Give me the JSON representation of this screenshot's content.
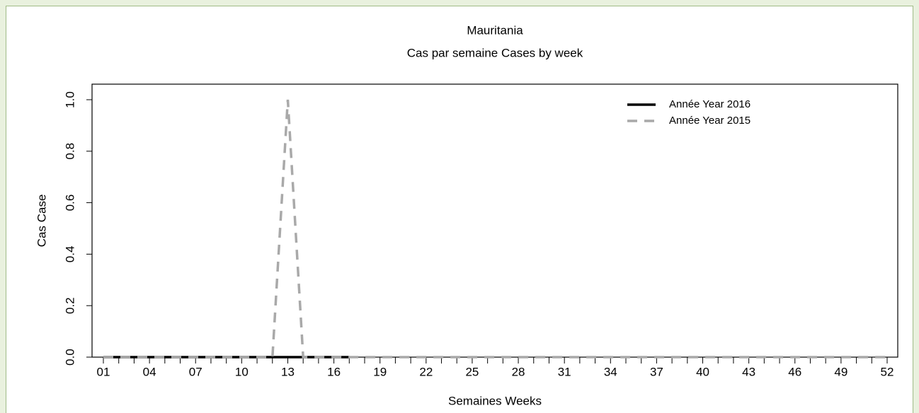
{
  "chart_data": {
    "type": "line",
    "title": "Mauritania",
    "subtitle": "Cas par semaine Cases by week",
    "x_label": "Semaines Weeks",
    "y_label": "Cas Case",
    "categories": [
      "01",
      null,
      null,
      "04",
      null,
      null,
      "07",
      null,
      null,
      "10",
      null,
      null,
      "13",
      null,
      null,
      "16",
      null,
      null,
      "19",
      null,
      null,
      "22",
      null,
      null,
      "25",
      null,
      null,
      "28",
      null,
      null,
      "31",
      null,
      null,
      "34",
      null,
      null,
      "37",
      null,
      null,
      "40",
      null,
      null,
      "43",
      null,
      null,
      "46",
      null,
      null,
      "49",
      null,
      null,
      "52"
    ],
    "series": [
      {
        "name": "Année Year 2016",
        "color": "#000000",
        "dash": false,
        "values": [
          0,
          0,
          0,
          0,
          0,
          0,
          0,
          0,
          0,
          0,
          0,
          0,
          0,
          0,
          0,
          0,
          0,
          null,
          null,
          null,
          null,
          null,
          null,
          null,
          null,
          null,
          null,
          null,
          null,
          null,
          null,
          null,
          null,
          null,
          null,
          null,
          null,
          null,
          null,
          null,
          null,
          null,
          null,
          null,
          null,
          null,
          null,
          null,
          null,
          null,
          null,
          null
        ]
      },
      {
        "name": "Année Year 2015",
        "color": "#a9a9a9",
        "dash": true,
        "values": [
          0,
          0,
          0,
          0,
          0,
          0,
          0,
          0,
          0,
          0,
          0,
          0,
          1,
          0,
          0,
          0,
          0,
          0,
          0,
          0,
          0,
          0,
          0,
          0,
          0,
          0,
          0,
          0,
          0,
          0,
          0,
          0,
          0,
          0,
          0,
          0,
          0,
          0,
          0,
          0,
          0,
          0,
          0,
          0,
          0,
          0,
          0,
          0,
          0,
          0,
          0,
          0
        ]
      }
    ],
    "ylim": [
      0,
      1
    ],
    "yticks": [
      {
        "value": 0,
        "label": "0.0"
      },
      0.2,
      0.4,
      0.6,
      0.8,
      {
        "value": 1,
        "label": "1.0"
      }
    ],
    "legend": "top-right"
  }
}
